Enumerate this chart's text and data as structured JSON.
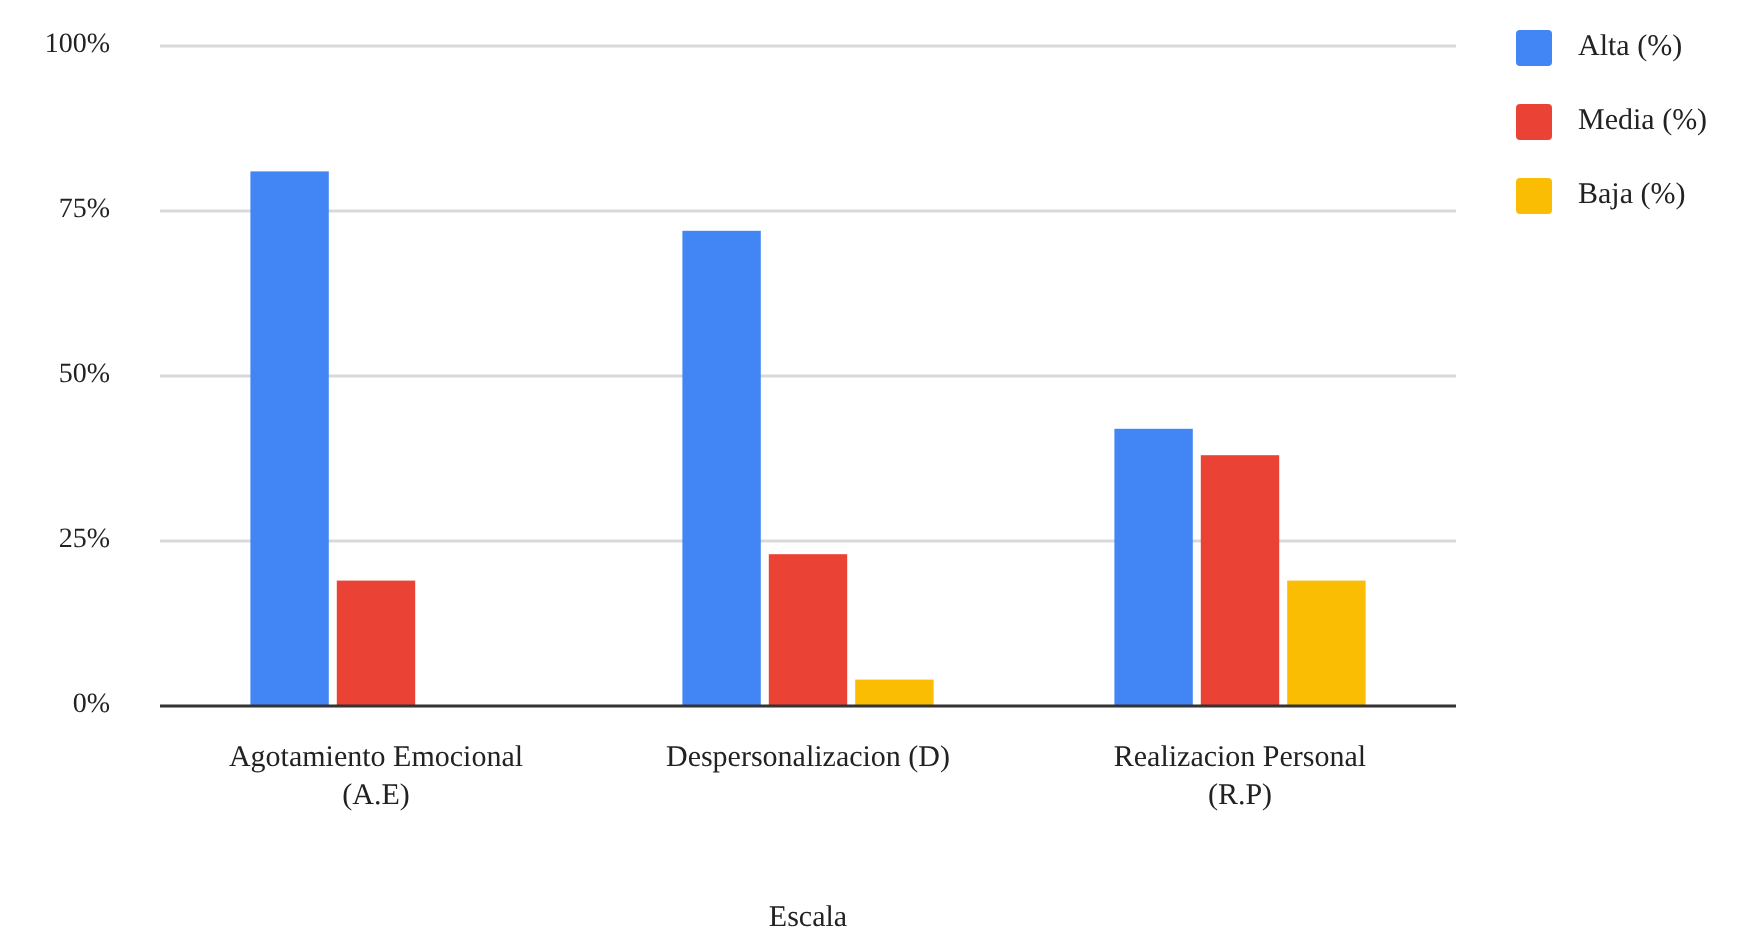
{
  "chart_data": {
    "type": "bar",
    "xlabel": "Escala",
    "categories": [
      "Agotamiento Emocional (A.E)",
      "Despersonalizacion (D)",
      "Realizacion Personal (R.P)"
    ],
    "series": [
      {
        "name": "Alta (%)",
        "color": "#4285f4",
        "values": [
          81,
          72,
          42
        ]
      },
      {
        "name": "Media (%)",
        "color": "#ea4335",
        "values": [
          19,
          23,
          38
        ]
      },
      {
        "name": "Baja (%)",
        "color": "#fbbc04",
        "values": [
          0,
          4,
          19
        ]
      }
    ],
    "ylim": [
      0,
      100
    ],
    "yticks": [
      {
        "value": 0,
        "label": "0%"
      },
      {
        "value": 25,
        "label": "25%"
      },
      {
        "value": 50,
        "label": "50%"
      },
      {
        "value": 75,
        "label": "75%"
      },
      {
        "value": 100,
        "label": "100%"
      }
    ],
    "grid": "y",
    "legend": "right"
  }
}
